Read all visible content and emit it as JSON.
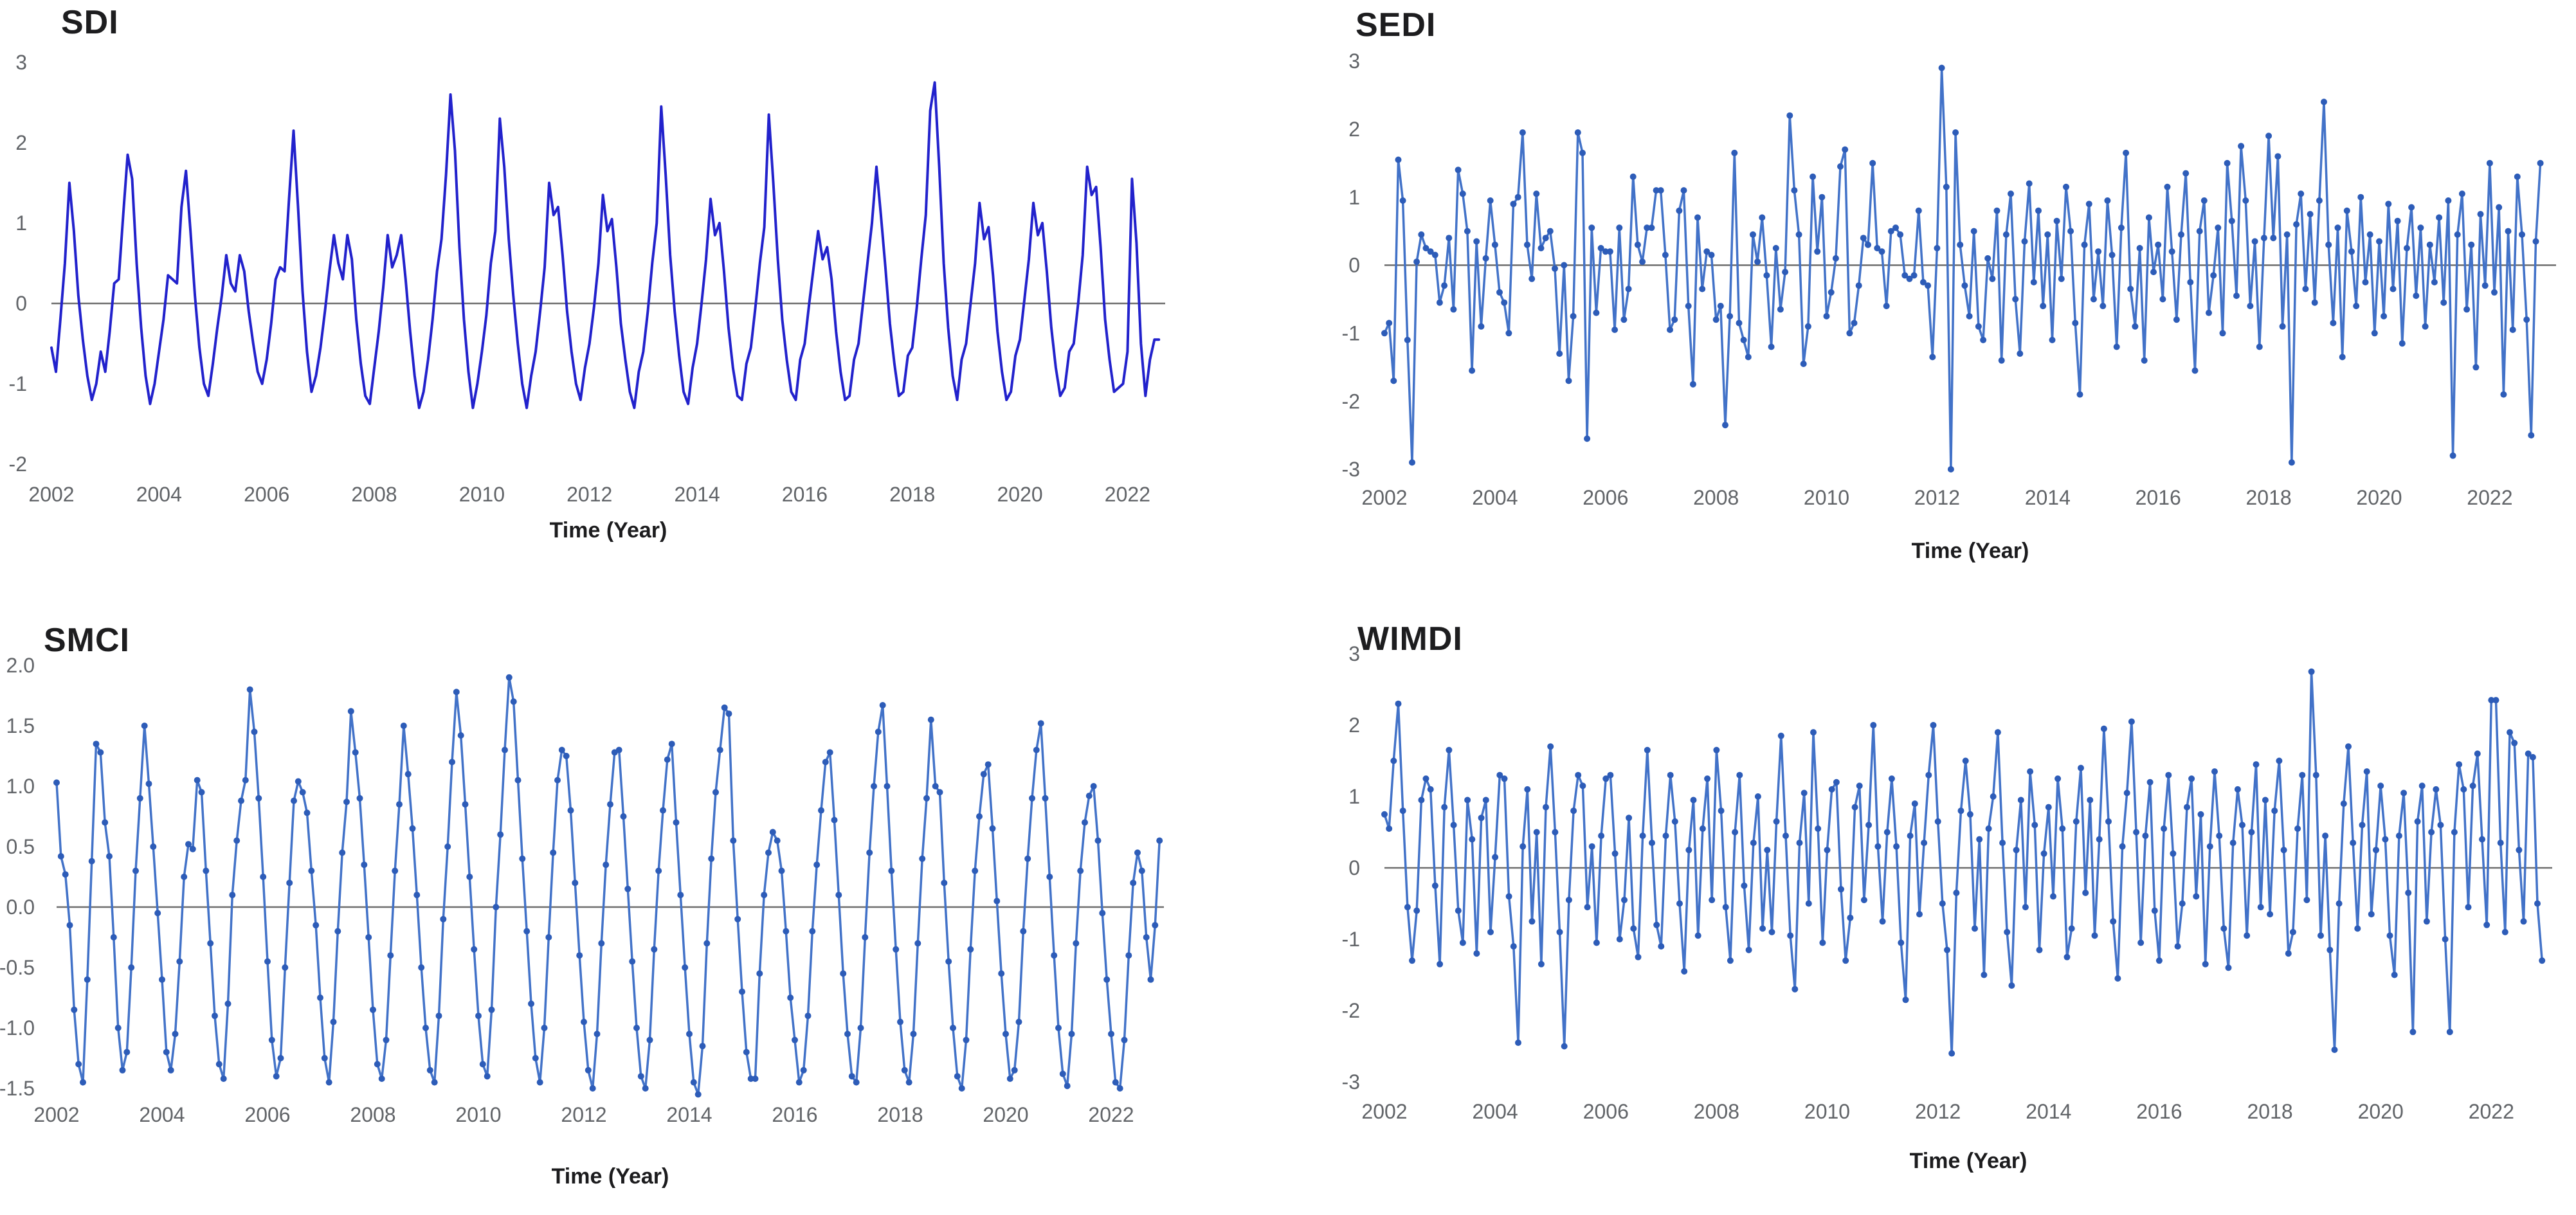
{
  "page": {
    "background": "#ffffff"
  },
  "chart_data": [
    {
      "id": "sdi",
      "type": "line",
      "title": "SDI",
      "xlabel": "Time (Year)",
      "x_min": 2002,
      "x_max": 2022.7,
      "x_start": 2002.0,
      "points_per_year": 12,
      "ylim": [
        -2,
        3
      ],
      "yticks": [
        3,
        2,
        1,
        0,
        -1,
        -2
      ],
      "ytick_labels": [
        "3",
        "2",
        "1",
        "0",
        "-1",
        "-2"
      ],
      "xticks": [
        2002,
        2004,
        2006,
        2008,
        2010,
        2012,
        2014,
        2016,
        2018,
        2020,
        2022
      ],
      "xtick_labels": [
        "2002",
        "2004",
        "2006",
        "2008",
        "2010",
        "2012",
        "2014",
        "2016",
        "2018",
        "2020",
        "2022"
      ],
      "markers": false,
      "line_color": "#2222cc",
      "marker_color": "#2222cc",
      "zero_line_color": "#6f6f6f",
      "tick_label_color": "#616468",
      "title_color": "#1d1d1f",
      "legend": "none",
      "grid": "off",
      "values": [
        -0.55,
        -0.85,
        -0.2,
        0.5,
        1.5,
        0.9,
        0.1,
        -0.45,
        -0.9,
        -1.2,
        -1.0,
        -0.6,
        -0.85,
        -0.35,
        0.25,
        0.3,
        1.1,
        1.85,
        1.55,
        0.5,
        -0.3,
        -0.9,
        -1.25,
        -1.0,
        -0.6,
        -0.2,
        0.35,
        0.3,
        0.25,
        1.2,
        1.65,
        0.9,
        0.1,
        -0.55,
        -1.0,
        -1.15,
        -0.75,
        -0.3,
        0.1,
        0.6,
        0.25,
        0.15,
        0.6,
        0.4,
        -0.1,
        -0.5,
        -0.85,
        -1.0,
        -0.7,
        -0.25,
        0.3,
        0.45,
        0.4,
        1.3,
        2.15,
        1.2,
        0.15,
        -0.6,
        -1.1,
        -0.9,
        -0.55,
        -0.1,
        0.4,
        0.85,
        0.5,
        0.3,
        0.85,
        0.55,
        -0.2,
        -0.75,
        -1.15,
        -1.25,
        -0.8,
        -0.35,
        0.2,
        0.85,
        0.45,
        0.6,
        0.85,
        0.3,
        -0.35,
        -0.9,
        -1.3,
        -1.1,
        -0.7,
        -0.2,
        0.4,
        0.8,
        1.6,
        2.6,
        1.9,
        0.7,
        -0.2,
        -0.85,
        -1.3,
        -1.0,
        -0.6,
        -0.15,
        0.5,
        0.9,
        2.3,
        1.7,
        0.8,
        0.1,
        -0.5,
        -1.0,
        -1.3,
        -0.9,
        -0.6,
        -0.1,
        0.45,
        1.5,
        1.1,
        1.2,
        0.6,
        -0.1,
        -0.6,
        -1.0,
        -1.2,
        -0.8,
        -0.5,
        -0.05,
        0.5,
        1.35,
        0.9,
        1.05,
        0.45,
        -0.25,
        -0.7,
        -1.1,
        -1.3,
        -0.85,
        -0.6,
        -0.1,
        0.5,
        1.0,
        2.45,
        1.6,
        0.6,
        -0.1,
        -0.65,
        -1.1,
        -1.25,
        -0.8,
        -0.5,
        0.0,
        0.55,
        1.3,
        0.85,
        1.0,
        0.4,
        -0.3,
        -0.8,
        -1.15,
        -1.2,
        -0.75,
        -0.55,
        -0.05,
        0.5,
        0.95,
        2.35,
        1.5,
        0.55,
        -0.2,
        -0.7,
        -1.1,
        -1.2,
        -0.7,
        -0.5,
        0.0,
        0.45,
        0.9,
        0.55,
        0.7,
        0.3,
        -0.35,
        -0.85,
        -1.2,
        -1.15,
        -0.7,
        -0.5,
        0.0,
        0.5,
        1.0,
        1.7,
        1.1,
        0.45,
        -0.25,
        -0.75,
        -1.15,
        -1.1,
        -0.65,
        -0.55,
        -0.05,
        0.55,
        1.1,
        2.4,
        2.75,
        1.7,
        0.5,
        -0.3,
        -0.9,
        -1.2,
        -0.7,
        -0.5,
        0.0,
        0.5,
        1.25,
        0.8,
        0.95,
        0.35,
        -0.35,
        -0.85,
        -1.2,
        -1.1,
        -0.65,
        -0.45,
        0.05,
        0.55,
        1.25,
        0.85,
        1.0,
        0.4,
        -0.3,
        -0.8,
        -1.15,
        -1.05,
        -0.6,
        -0.5,
        0.0,
        0.6,
        1.7,
        1.35,
        1.45,
        0.7,
        -0.2,
        -0.7,
        -1.1,
        -1.05,
        -1.0,
        -0.6,
        1.55,
        0.75,
        -0.5,
        -1.15,
        -0.7,
        -0.45,
        -0.45
      ]
    },
    {
      "id": "sedi",
      "type": "line",
      "title": "SEDI",
      "xlabel": "Time (Year)",
      "x_min": 2002,
      "x_max": 2023.2,
      "x_start": 2002.0,
      "points_per_year": 12,
      "ylim": [
        -3,
        3
      ],
      "yticks": [
        3,
        2,
        1,
        0,
        -1,
        -2,
        -3
      ],
      "ytick_labels": [
        "3",
        "2",
        "1",
        "0",
        "-1",
        "-2",
        "-3"
      ],
      "xticks": [
        2002,
        2004,
        2006,
        2008,
        2010,
        2012,
        2014,
        2016,
        2018,
        2020,
        2022
      ],
      "xtick_labels": [
        "2002",
        "2004",
        "2006",
        "2008",
        "2010",
        "2012",
        "2014",
        "2016",
        "2018",
        "2020",
        "2022"
      ],
      "markers": true,
      "line_color": "#4272c8",
      "marker_color": "#2d5cb8",
      "zero_line_color": "#6f6f6f",
      "tick_label_color": "#616468",
      "title_color": "#1d1d1f",
      "legend": "none",
      "grid": "off",
      "values": [
        -1.0,
        -0.85,
        -1.7,
        1.55,
        0.95,
        -1.1,
        -2.9,
        0.05,
        0.45,
        0.25,
        0.2,
        0.15,
        -0.55,
        -0.3,
        0.4,
        -0.65,
        1.4,
        1.05,
        0.5,
        -1.55,
        0.35,
        -0.9,
        0.1,
        0.95,
        0.3,
        -0.4,
        -0.55,
        -1.0,
        0.9,
        1.0,
        1.95,
        0.3,
        -0.2,
        1.05,
        0.25,
        0.4,
        0.5,
        -0.05,
        -1.3,
        0.0,
        -1.7,
        -0.75,
        1.95,
        1.65,
        -2.55,
        0.55,
        -0.7,
        0.25,
        0.2,
        0.2,
        -0.95,
        0.55,
        -0.8,
        -0.35,
        1.3,
        0.3,
        0.05,
        0.55,
        0.55,
        1.1,
        1.1,
        0.15,
        -0.95,
        -0.8,
        0.8,
        1.1,
        -0.6,
        -1.75,
        0.7,
        -0.35,
        0.2,
        0.15,
        -0.8,
        -0.6,
        -2.35,
        -0.75,
        1.65,
        -0.85,
        -1.1,
        -1.35,
        0.45,
        0.05,
        0.7,
        -0.15,
        -1.2,
        0.25,
        -0.65,
        -0.1,
        2.2,
        1.1,
        0.45,
        -1.45,
        -0.9,
        1.3,
        0.2,
        1.0,
        -0.75,
        -0.4,
        0.1,
        1.45,
        1.7,
        -1.0,
        -0.85,
        -0.3,
        0.4,
        0.3,
        1.5,
        0.25,
        0.2,
        -0.6,
        0.5,
        0.55,
        0.45,
        -0.15,
        -0.2,
        -0.15,
        0.8,
        -0.25,
        -0.3,
        -1.35,
        0.25,
        2.9,
        1.15,
        -3.0,
        1.95,
        0.3,
        -0.3,
        -0.75,
        0.5,
        -0.9,
        -1.1,
        0.1,
        -0.2,
        0.8,
        -1.4,
        0.45,
        1.05,
        -0.5,
        -1.3,
        0.35,
        1.2,
        -0.25,
        0.8,
        -0.6,
        0.45,
        -1.1,
        0.65,
        -0.2,
        1.15,
        0.5,
        -0.85,
        -1.9,
        0.3,
        0.9,
        -0.5,
        0.2,
        -0.6,
        0.95,
        0.15,
        -1.2,
        0.55,
        1.65,
        -0.35,
        -0.9,
        0.25,
        -1.4,
        0.7,
        -0.1,
        0.3,
        -0.5,
        1.15,
        0.2,
        -0.8,
        0.45,
        1.35,
        -0.25,
        -1.55,
        0.5,
        0.95,
        -0.7,
        -0.15,
        0.55,
        -1.0,
        1.5,
        0.65,
        -0.45,
        1.75,
        0.95,
        -0.6,
        0.35,
        -1.2,
        0.4,
        1.9,
        0.4,
        1.6,
        -0.9,
        0.45,
        -2.9,
        0.6,
        1.05,
        -0.35,
        0.75,
        -0.55,
        0.95,
        2.4,
        0.3,
        -0.85,
        0.55,
        -1.35,
        0.8,
        0.2,
        -0.6,
        1.0,
        -0.25,
        0.45,
        -1.0,
        0.35,
        -0.75,
        0.9,
        -0.35,
        0.65,
        -1.15,
        0.25,
        0.85,
        -0.45,
        0.55,
        -0.9,
        0.3,
        -0.25,
        0.7,
        -0.55,
        0.95,
        -2.8,
        0.45,
        1.05,
        -0.65,
        0.3,
        -1.5,
        0.75,
        -0.3,
        1.5,
        -0.4,
        0.85,
        -1.9,
        0.5,
        -0.95,
        1.3,
        0.45,
        -0.8,
        -2.5,
        0.35,
        1.5
      ]
    },
    {
      "id": "smci",
      "type": "line",
      "title": "SMCI",
      "xlabel": "Time (Year)",
      "x_min": 2002,
      "x_max": 2023.0,
      "x_start": 2002.0,
      "points_per_year": 12,
      "ylim": [
        -1.5,
        2.0
      ],
      "yticks": [
        2.0,
        1.5,
        1.0,
        0.5,
        0.0,
        -0.5,
        -1.0,
        -1.5
      ],
      "ytick_labels": [
        "2.0",
        "1.5",
        "1.0",
        "0.5",
        "0.0",
        "-0.5",
        "-1.0",
        "-1.5"
      ],
      "xticks": [
        2002,
        2004,
        2006,
        2008,
        2010,
        2012,
        2014,
        2016,
        2018,
        2020,
        2022
      ],
      "xtick_labels": [
        "2002",
        "2004",
        "2006",
        "2008",
        "2010",
        "2012",
        "2014",
        "2016",
        "2018",
        "2020",
        "2022"
      ],
      "markers": true,
      "line_color": "#4272c8",
      "marker_color": "#2d5cb8",
      "zero_line_color": "#6f6f6f",
      "tick_label_color": "#616468",
      "title_color": "#1d1d1f",
      "legend": "none",
      "grid": "off",
      "values": [
        1.03,
        0.42,
        0.27,
        -0.15,
        -0.85,
        -1.3,
        -1.45,
        -0.6,
        0.38,
        1.35,
        1.28,
        0.7,
        0.42,
        -0.25,
        -1.0,
        -1.35,
        -1.2,
        -0.5,
        0.3,
        0.9,
        1.5,
        1.02,
        0.5,
        -0.05,
        -0.6,
        -1.2,
        -1.35,
        -1.05,
        -0.45,
        0.25,
        0.52,
        0.48,
        1.05,
        0.95,
        0.3,
        -0.3,
        -0.9,
        -1.3,
        -1.42,
        -0.8,
        0.1,
        0.55,
        0.88,
        1.05,
        1.8,
        1.45,
        0.9,
        0.25,
        -0.45,
        -1.1,
        -1.4,
        -1.25,
        -0.5,
        0.2,
        0.88,
        1.04,
        0.95,
        0.78,
        0.3,
        -0.15,
        -0.75,
        -1.25,
        -1.45,
        -0.95,
        -0.2,
        0.45,
        0.87,
        1.62,
        1.28,
        0.9,
        0.35,
        -0.25,
        -0.85,
        -1.3,
        -1.42,
        -1.1,
        -0.4,
        0.3,
        0.85,
        1.5,
        1.1,
        0.65,
        0.1,
        -0.5,
        -1.0,
        -1.35,
        -1.45,
        -0.9,
        -0.1,
        0.5,
        1.2,
        1.78,
        1.42,
        0.85,
        0.25,
        -0.35,
        -0.9,
        -1.3,
        -1.4,
        -0.85,
        0.0,
        0.6,
        1.3,
        1.9,
        1.7,
        1.05,
        0.4,
        -0.2,
        -0.8,
        -1.25,
        -1.45,
        -1.0,
        -0.25,
        0.45,
        1.05,
        1.3,
        1.25,
        0.8,
        0.2,
        -0.4,
        -0.95,
        -1.35,
        -1.5,
        -1.05,
        -0.3,
        0.35,
        0.85,
        1.28,
        1.3,
        0.75,
        0.15,
        -0.45,
        -1.0,
        -1.4,
        -1.5,
        -1.1,
        -0.35,
        0.3,
        0.8,
        1.22,
        1.35,
        0.7,
        0.1,
        -0.5,
        -1.05,
        -1.45,
        -1.55,
        -1.15,
        -0.3,
        0.4,
        0.95,
        1.3,
        1.65,
        1.6,
        0.55,
        -0.1,
        -0.7,
        -1.2,
        -1.42,
        -1.42,
        -0.55,
        0.1,
        0.45,
        0.62,
        0.55,
        0.3,
        -0.2,
        -0.75,
        -1.1,
        -1.45,
        -1.35,
        -0.9,
        -0.2,
        0.35,
        0.8,
        1.2,
        1.28,
        0.72,
        0.1,
        -0.55,
        -1.05,
        -1.4,
        -1.45,
        -1.0,
        -0.25,
        0.45,
        1.0,
        1.45,
        1.67,
        1.0,
        0.3,
        -0.35,
        -0.95,
        -1.35,
        -1.45,
        -1.05,
        -0.3,
        0.4,
        0.9,
        1.55,
        1.0,
        0.95,
        0.2,
        -0.45,
        -1.0,
        -1.4,
        -1.5,
        -1.1,
        -0.35,
        0.3,
        0.75,
        1.1,
        1.18,
        0.65,
        0.05,
        -0.55,
        -1.05,
        -1.42,
        -1.35,
        -0.95,
        -0.2,
        0.4,
        0.9,
        1.3,
        1.52,
        0.9,
        0.25,
        -0.4,
        -1.0,
        -1.38,
        -1.48,
        -1.05,
        -0.3,
        0.3,
        0.7,
        0.92,
        1.0,
        0.55,
        -0.05,
        -0.6,
        -1.05,
        -1.45,
        -1.5,
        -1.1,
        -0.4,
        0.2,
        0.45,
        0.3,
        -0.25,
        -0.6,
        -0.15,
        0.55
      ]
    },
    {
      "id": "wimdi",
      "type": "line",
      "title": "WIMDI",
      "xlabel": "Time (Year)",
      "x_min": 2002,
      "x_max": 2023.1,
      "x_start": 2002.0,
      "points_per_year": 12,
      "ylim": [
        -3,
        3
      ],
      "yticks": [
        3,
        2,
        1,
        0,
        -1,
        -2,
        -3
      ],
      "ytick_labels": [
        "3",
        "2",
        "1",
        "0",
        "-1",
        "-2",
        "-3"
      ],
      "xticks": [
        2002,
        2004,
        2006,
        2008,
        2010,
        2012,
        2014,
        2016,
        2018,
        2020,
        2022
      ],
      "xtick_labels": [
        "2002",
        "2004",
        "2006",
        "2008",
        "2010",
        "2012",
        "2014",
        "2016",
        "2018",
        "2020",
        "2022"
      ],
      "markers": true,
      "line_color": "#4272c8",
      "marker_color": "#2d5cb8",
      "zero_line_color": "#6f6f6f",
      "tick_label_color": "#616468",
      "title_color": "#1d1d1f",
      "legend": "none",
      "grid": "off",
      "values": [
        0.75,
        0.55,
        1.5,
        2.3,
        0.8,
        -0.55,
        -1.3,
        -0.6,
        0.95,
        1.25,
        1.1,
        -0.25,
        -1.35,
        0.85,
        1.65,
        0.6,
        -0.6,
        -1.05,
        0.95,
        0.4,
        -1.2,
        0.7,
        0.95,
        -0.9,
        0.15,
        1.3,
        1.25,
        -0.4,
        -1.1,
        -2.45,
        0.3,
        1.1,
        -0.75,
        0.5,
        -1.35,
        0.85,
        1.7,
        0.5,
        -0.9,
        -2.5,
        -0.45,
        0.8,
        1.3,
        1.15,
        -0.55,
        0.3,
        -1.05,
        0.45,
        1.25,
        1.3,
        0.2,
        -1.0,
        -0.45,
        0.7,
        -0.85,
        -1.25,
        0.45,
        1.65,
        0.35,
        -0.8,
        -1.1,
        0.45,
        1.3,
        0.65,
        -0.5,
        -1.45,
        0.25,
        0.95,
        -0.95,
        0.55,
        1.25,
        -0.45,
        1.65,
        0.8,
        -0.55,
        -1.3,
        0.5,
        1.3,
        -0.25,
        -1.15,
        0.35,
        1.0,
        -0.85,
        0.25,
        -0.9,
        0.65,
        1.85,
        0.45,
        -0.95,
        -1.7,
        0.35,
        1.05,
        -0.5,
        1.9,
        0.55,
        -1.05,
        0.25,
        1.1,
        1.2,
        -0.3,
        -1.3,
        -0.7,
        0.85,
        1.15,
        -0.45,
        0.6,
        2.0,
        0.3,
        -0.75,
        0.5,
        1.25,
        0.3,
        -1.05,
        -1.85,
        0.45,
        0.9,
        -0.65,
        0.35,
        1.3,
        2.0,
        0.65,
        -0.5,
        -1.15,
        -2.6,
        -0.35,
        0.8,
        1.5,
        0.75,
        -0.85,
        0.4,
        -1.5,
        0.55,
        1.0,
        1.9,
        0.35,
        -0.9,
        -1.65,
        0.25,
        0.95,
        -0.55,
        1.35,
        0.6,
        -1.15,
        0.2,
        0.85,
        -0.4,
        1.25,
        0.55,
        -1.25,
        -0.85,
        0.65,
        1.4,
        -0.35,
        0.95,
        -0.95,
        0.4,
        1.95,
        0.65,
        -0.75,
        -1.55,
        0.3,
        1.05,
        2.05,
        0.5,
        -1.05,
        0.45,
        1.2,
        -0.6,
        -1.3,
        0.55,
        1.3,
        0.2,
        -1.1,
        -0.5,
        0.85,
        1.25,
        -0.4,
        0.75,
        -1.35,
        0.3,
        1.35,
        0.45,
        -0.85,
        -1.4,
        0.35,
        1.1,
        0.6,
        -0.95,
        0.5,
        1.45,
        -0.55,
        0.95,
        -0.65,
        0.8,
        1.5,
        0.25,
        -1.2,
        -0.9,
        0.55,
        1.3,
        -0.45,
        2.75,
        1.3,
        -0.95,
        0.45,
        -1.15,
        -2.55,
        -0.5,
        0.9,
        1.7,
        0.35,
        -0.85,
        0.6,
        1.35,
        -0.65,
        0.25,
        1.15,
        0.4,
        -0.95,
        -1.5,
        0.45,
        1.05,
        -0.35,
        -2.3,
        0.65,
        1.15,
        -0.75,
        0.5,
        1.1,
        0.6,
        -1.0,
        -2.3,
        0.5,
        1.45,
        1.1,
        -0.55,
        1.15,
        1.6,
        0.4,
        -0.8,
        2.35,
        2.35,
        0.35,
        -0.9,
        1.9,
        1.75,
        0.25,
        -0.75,
        1.6,
        1.55,
        -0.5,
        -1.3
      ]
    }
  ]
}
